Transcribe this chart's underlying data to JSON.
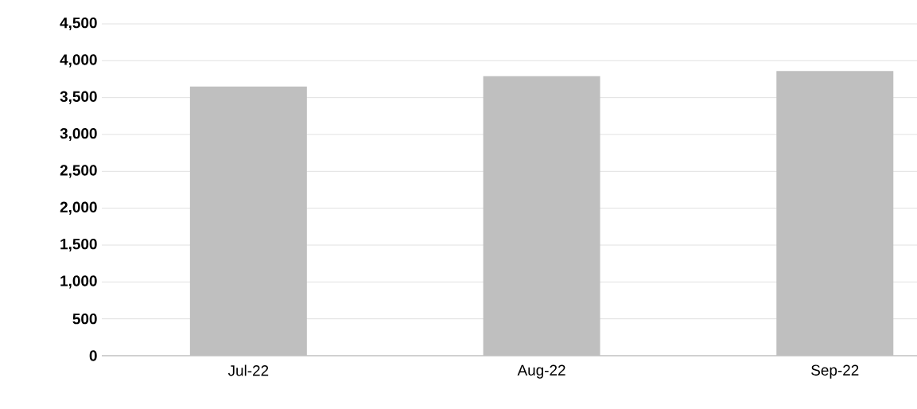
{
  "chart_data": {
    "type": "bar",
    "categories": [
      "Jul-22",
      "Aug-22",
      "Sep-22"
    ],
    "values": [
      3650,
      3790,
      3860
    ],
    "color": "#bfbfbf",
    "ylim": [
      0,
      4500
    ],
    "yticks": [
      0,
      500,
      {
        "value": 1000,
        "label": "1,000"
      },
      {
        "value": 1500,
        "label": "1,500"
      },
      {
        "value": 2000,
        "label": "2,000"
      },
      {
        "value": 2500,
        "label": "2,500"
      },
      {
        "value": 3000,
        "label": "3,000"
      },
      {
        "value": 3500,
        "label": "3,500"
      },
      {
        "value": 4000,
        "label": "4,000"
      },
      {
        "value": 4500,
        "label": "4,500"
      }
    ],
    "grid": "y"
  }
}
